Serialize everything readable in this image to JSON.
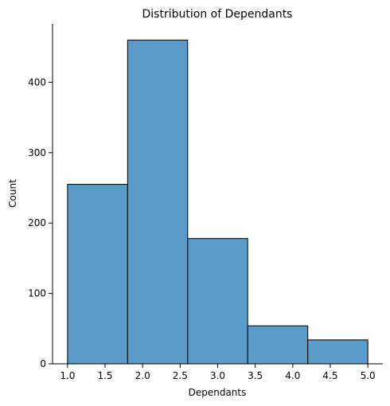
{
  "chart_data": {
    "type": "bar",
    "title": "Distribution of Dependants",
    "xlabel": "Dependants",
    "ylabel": "Count",
    "bins": [
      {
        "start": 1.0,
        "end": 1.8,
        "count": 255
      },
      {
        "start": 1.8,
        "end": 2.6,
        "count": 460
      },
      {
        "start": 2.6,
        "end": 3.4,
        "count": 178
      },
      {
        "start": 3.4,
        "end": 4.2,
        "count": 54
      },
      {
        "start": 4.2,
        "end": 5.0,
        "count": 34
      }
    ],
    "xlim": [
      0.8,
      5.2
    ],
    "ylim": [
      0,
      483
    ],
    "xticks": [
      "1.0",
      "1.5",
      "2.0",
      "2.5",
      "3.0",
      "3.5",
      "4.0",
      "4.5",
      "5.0"
    ],
    "yticks": [
      "0",
      "100",
      "200",
      "300",
      "400"
    ],
    "grid": false,
    "bar_color": "#5b9bc9",
    "edge_color": "#000000"
  }
}
